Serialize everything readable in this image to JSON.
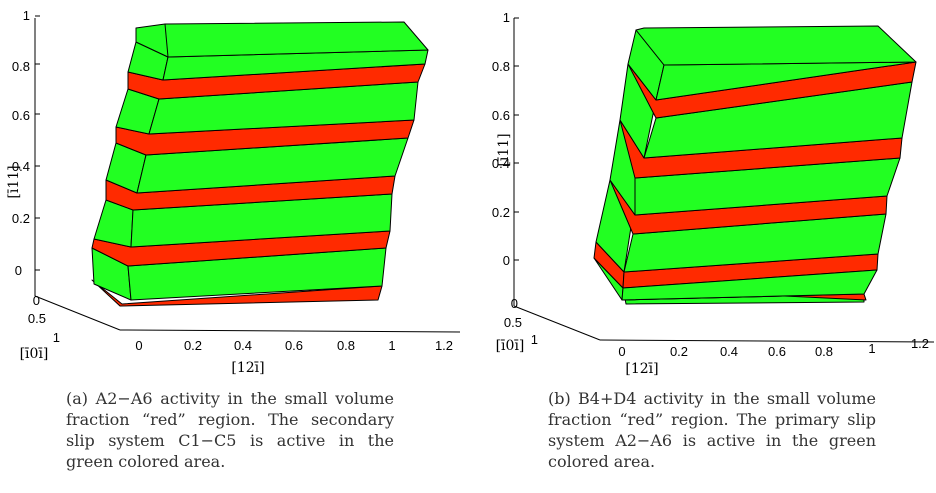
{
  "colors": {
    "green": "#22ff22",
    "red": "#ff2a00",
    "edge": "#000000"
  },
  "figures": [
    {
      "id": "a",
      "z_ticks": [
        "0",
        "0.2",
        "0.4",
        "0.6",
        "0.8",
        "1"
      ],
      "y_ticks": [
        "0",
        "0.5",
        "1"
      ],
      "x_ticks": [
        "0",
        "0.2",
        "0.4",
        "0.6",
        "0.8",
        "1",
        "1.2"
      ],
      "z_label": "[ī11]",
      "y_label": "[ī0ī]",
      "x_label": "[12ī]",
      "caption": "(a) A2−A6 activity in the small volume fraction “red” region. The secondary slip system C1−C5 is active in the green colored area."
    },
    {
      "id": "b",
      "z_ticks": [
        "0",
        "0.2",
        "0.4",
        "0.6",
        "0.8",
        "1"
      ],
      "y_ticks": [
        "0",
        "0.5",
        "1"
      ],
      "x_ticks": [
        "0",
        "0.2",
        "0.4",
        "0.6",
        "0.8",
        "1",
        "1.2"
      ],
      "z_label": "[ī11]",
      "y_label": "[ī0ī]",
      "x_label": "[12ī]",
      "caption": "(b) B4+D4 activity in the small volume fraction “red” region. The primary slip system A2−A6 is active in the green colored area."
    }
  ]
}
